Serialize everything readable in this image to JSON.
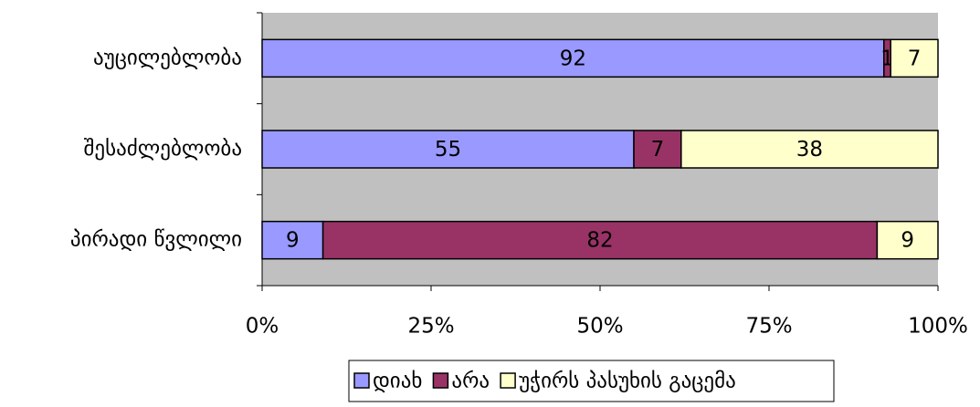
{
  "chart_data": {
    "type": "stacked-bar-horizontal",
    "categories": [
      "აუცილებლობა",
      "შესაძლებლობა",
      "პირადი წვლილი"
    ],
    "series": [
      {
        "name": "დიახ",
        "color": "#9999ff",
        "values": [
          92,
          55,
          9
        ]
      },
      {
        "name": "არა",
        "color": "#993366",
        "values": [
          1,
          7,
          82
        ]
      },
      {
        "name": "უჭირს პასუხის გაცემა",
        "color": "#ffffcc",
        "values": [
          7,
          38,
          9
        ]
      }
    ],
    "xlim": [
      0,
      100
    ],
    "xticks": [
      {
        "value": 0,
        "label": "0%"
      },
      {
        "value": 25,
        "label": "25%"
      },
      {
        "value": 50,
        "label": "50%"
      },
      {
        "value": 75,
        "label": "75%"
      },
      {
        "value": 100,
        "label": "100%"
      }
    ],
    "legend": "bottom"
  }
}
